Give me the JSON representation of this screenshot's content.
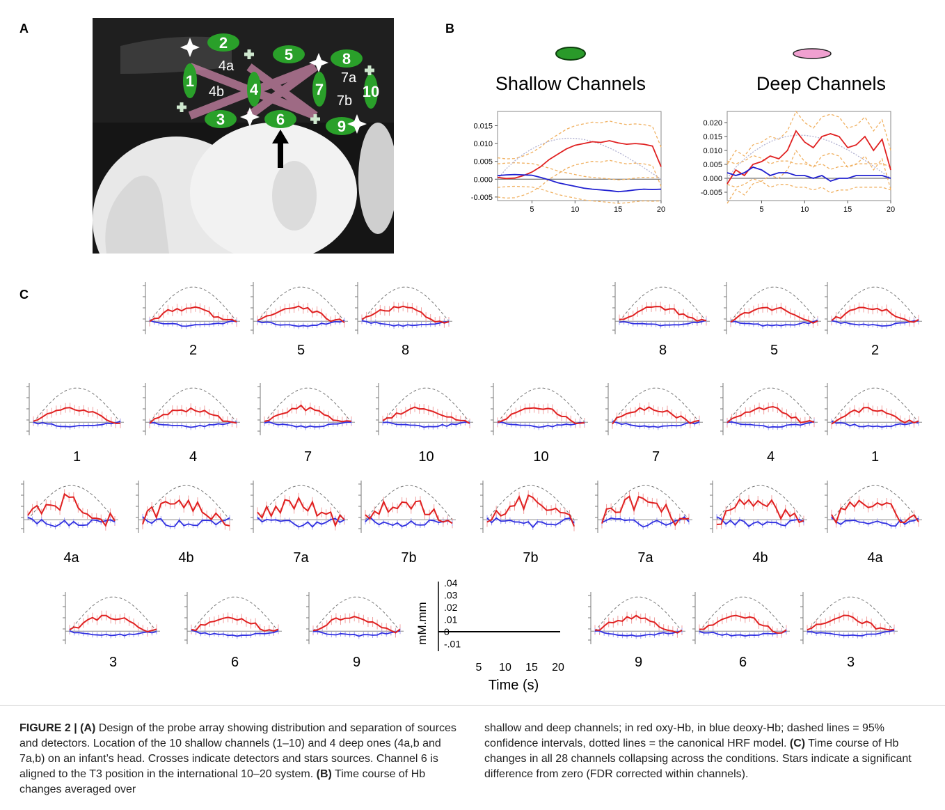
{
  "panels": {
    "a_label": "A",
    "b_label": "B",
    "c_label": "C"
  },
  "probe": {
    "channels": [
      "1",
      "2",
      "3",
      "4",
      "5",
      "6",
      "7",
      "8",
      "9",
      "10"
    ],
    "deep_channels": [
      "4a",
      "4b",
      "7a",
      "7b"
    ]
  },
  "panel_b": {
    "shallow_title": "Shallow Channels",
    "deep_title": "Deep Channels",
    "colors": {
      "oxy": "#e02020",
      "deoxy": "#2020d0",
      "ci": "#f0b060",
      "hrf": "#b0b0d0"
    }
  },
  "chart_data": [
    {
      "type": "line",
      "title": "Shallow Channels",
      "x": [
        1,
        2,
        3,
        4,
        5,
        6,
        7,
        8,
        9,
        10,
        11,
        12,
        13,
        14,
        15,
        16,
        17,
        18,
        19,
        20
      ],
      "xticks": [
        "5",
        "10",
        "15",
        "20"
      ],
      "yticks": [
        "0.015",
        "0.010",
        "0.005",
        "0.000",
        "-0.005"
      ],
      "ylim": [
        -0.006,
        0.019
      ],
      "series": [
        {
          "values": [
            0.0005,
            0.0002,
            0.0003,
            0.001,
            0.002,
            0.0035,
            0.0055,
            0.007,
            0.0085,
            0.0095,
            0.01,
            0.0105,
            0.0103,
            0.0108,
            0.0102,
            0.0098,
            0.01,
            0.0098,
            0.0093,
            0.0035
          ]
        },
        {
          "values": [
            0.001,
            0.0012,
            0.0013,
            0.0012,
            0.0011,
            0.0005,
            -0.0002,
            -0.001,
            -0.0015,
            -0.002,
            -0.0025,
            -0.0028,
            -0.003,
            -0.0032,
            -0.0035,
            -0.0033,
            -0.003,
            -0.0028,
            -0.0029,
            -0.0028
          ]
        }
      ]
    },
    {
      "type": "line",
      "title": "Deep Channels",
      "x": [
        1,
        2,
        3,
        4,
        5,
        6,
        7,
        8,
        9,
        10,
        11,
        12,
        13,
        14,
        15,
        16,
        17,
        18,
        19,
        20
      ],
      "xticks": [
        "5",
        "10",
        "15",
        "20"
      ],
      "yticks": [
        "0.020",
        "0.015",
        "0.010",
        "0.005",
        "0.000",
        "-0.005"
      ],
      "ylim": [
        -0.008,
        0.024
      ],
      "series": [
        {
          "values": [
            -0.002,
            0.003,
            0.001,
            0.005,
            0.006,
            0.008,
            0.007,
            0.01,
            0.017,
            0.013,
            0.011,
            0.015,
            0.016,
            0.015,
            0.011,
            0.012,
            0.015,
            0.01,
            0.014,
            0.003
          ]
        },
        {
          "values": [
            0.002,
            0.001,
            0.002,
            0.004,
            0.003,
            0.001,
            0.002,
            0.002,
            0.001,
            0.001,
            0.0,
            0.001,
            -0.001,
            0.0,
            0.0,
            0.001,
            0.001,
            0.001,
            0.001,
            0.0
          ]
        }
      ]
    }
  ],
  "panel_c": {
    "rows": [
      [
        "2",
        "5",
        "8",
        "8",
        "5",
        "2"
      ],
      [
        "1",
        "4",
        "7",
        "10",
        "10",
        "7",
        "4",
        "1"
      ],
      [
        "4a",
        "4b",
        "7a",
        "7b",
        "7b",
        "7a",
        "4b",
        "4a"
      ],
      [
        "3",
        "6",
        "9",
        "9",
        "6",
        "3"
      ]
    ],
    "scale": {
      "ylabel": "mM.mm",
      "yticks": [
        ".04",
        ".03",
        ".02",
        ".01",
        "0",
        "-.01"
      ],
      "xticks": [
        "5",
        "10",
        "15",
        "20"
      ],
      "xlabel": "Time (s)"
    }
  },
  "caption": {
    "fig_label": "FIGURE 2 |",
    "a_tag": "(A)",
    "a_text": " Design of the probe array showing distribution and separation of sources and detectors. Location of the 10 shallow channels (1–10) and 4 deep ones (4a,b and 7a,b) on an infant’s head. Crosses indicate detectors and stars sources. Channel 6 is aligned to the T3 position in the international 10–20 system. ",
    "b_tag": "(B)",
    "b_text": " Time course of Hb changes averaged over shallow and deep channels; in red oxy-Hb, in blue deoxy-Hb; dashed lines = 95% confidence intervals, dotted lines = the canonical HRF model. ",
    "c_tag": "(C)",
    "c_text": " Time course of Hb changes in all 28 channels collapsing across the conditions. Stars indicate a significant difference from zero (FDR corrected within channels)."
  }
}
